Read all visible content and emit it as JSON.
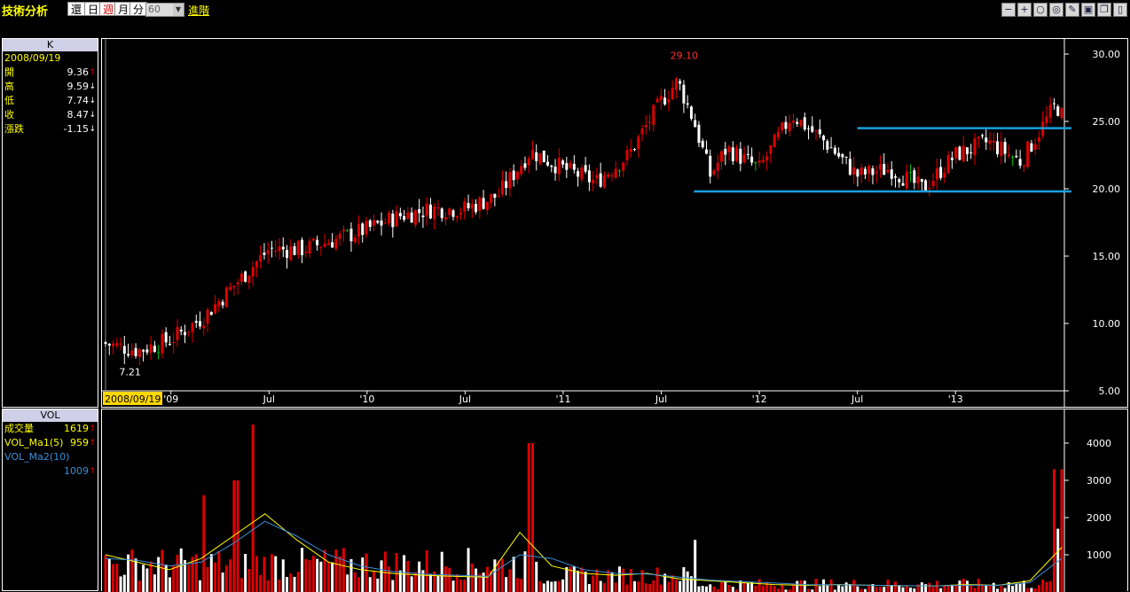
{
  "toolbar": {
    "title": "技術分析",
    "timeframes": [
      "還",
      "日",
      "週",
      "月",
      "分"
    ],
    "active_timeframe": "週",
    "period_value": "60",
    "advanced_label": "進階",
    "window_tools": [
      "minus-icon",
      "plus-icon",
      "zoom-out-icon",
      "zoom-in-icon",
      "draw-icon",
      "save-icon",
      "restore-icon",
      "close-icon"
    ]
  },
  "k_panel": {
    "title": "K",
    "date": "2008/09/19",
    "rows": [
      {
        "label": "開",
        "value": "9.36",
        "dir": "↑"
      },
      {
        "label": "高",
        "value": "9.59",
        "dir": "↓"
      },
      {
        "label": "低",
        "value": "7.74",
        "dir": "↓"
      },
      {
        "label": "收",
        "value": "8.47",
        "dir": "↓"
      },
      {
        "label": "漲跌",
        "value": "-1.15",
        "dir": "↓"
      }
    ]
  },
  "vol_panel": {
    "title": "VOL",
    "rows": [
      {
        "label": "成交量",
        "value": "1619",
        "dir": "↑"
      },
      {
        "label": "VOL_Ma1(5)",
        "value": "959",
        "dir": "↑"
      },
      {
        "label": "VOL_Ma2(10)",
        "value": "",
        "dir": ""
      },
      {
        "label": "",
        "value": "1009",
        "dir": "↑"
      }
    ]
  },
  "colors": {
    "up": "#e00000",
    "down": "#ffffff",
    "flat": "#00c000",
    "ma5": "#ffff00",
    "ma10": "#3b8fd8",
    "trend": "#1aa0e0",
    "cursor_label": "#ffd700"
  },
  "chart_data": [
    {
      "type": "candlestick",
      "ylim": [
        5,
        30
      ],
      "yticks": [
        "30.00",
        "25.00",
        "20.00",
        "15.00",
        "10.00",
        "5.00"
      ],
      "x_tick_labels": [
        "2008/09/19",
        "'09",
        "Jul",
        "'10",
        "Jul",
        "'11",
        "Jul",
        "'12",
        "Jul",
        "'13"
      ],
      "annotations": [
        {
          "label": "29.10",
          "value": 29.1
        },
        {
          "label": "7.21",
          "value": 7.21
        }
      ],
      "trendlines": [
        {
          "from": {
            "date": "2011-09",
            "value": 19.8
          },
          "to": {
            "date": "2013-07",
            "value": 19.8
          }
        },
        {
          "from": {
            "date": "2012-07",
            "value": 24.5
          },
          "to": {
            "date": "2013-07",
            "value": 24.5
          }
        }
      ],
      "close_path": [
        {
          "date": "2008-09",
          "value": 8.5
        },
        {
          "date": "2008-11",
          "value": 8.0
        },
        {
          "date": "2009-01",
          "value": 8.8
        },
        {
          "date": "2009-03",
          "value": 10.5
        },
        {
          "date": "2009-05",
          "value": 13.0
        },
        {
          "date": "2009-07",
          "value": 15.5
        },
        {
          "date": "2009-09",
          "value": 15.5
        },
        {
          "date": "2009-11",
          "value": 16.2
        },
        {
          "date": "2010-01",
          "value": 17.0
        },
        {
          "date": "2010-03",
          "value": 18.0
        },
        {
          "date": "2010-05",
          "value": 18.5
        },
        {
          "date": "2010-07",
          "value": 18.5
        },
        {
          "date": "2010-09",
          "value": 19.5
        },
        {
          "date": "2010-11",
          "value": 22.8
        },
        {
          "date": "2011-01",
          "value": 21.5
        },
        {
          "date": "2011-03",
          "value": 20.5
        },
        {
          "date": "2011-05",
          "value": 22.5
        },
        {
          "date": "2011-07",
          "value": 26.5
        },
        {
          "date": "2011-08",
          "value": 28.0
        },
        {
          "date": "2011-09",
          "value": 25.0
        },
        {
          "date": "2011-10",
          "value": 21.0
        },
        {
          "date": "2011-11",
          "value": 23.0
        },
        {
          "date": "2012-01",
          "value": 21.5
        },
        {
          "date": "2012-03",
          "value": 25.5
        },
        {
          "date": "2012-05",
          "value": 23.5
        },
        {
          "date": "2012-07",
          "value": 21.0
        },
        {
          "date": "2012-09",
          "value": 21.5
        },
        {
          "date": "2012-11",
          "value": 20.0
        },
        {
          "date": "2013-01",
          "value": 22.5
        },
        {
          "date": "2013-03",
          "value": 23.5
        },
        {
          "date": "2013-05",
          "value": 22.0
        },
        {
          "date": "2013-07",
          "value": 26.0
        }
      ]
    },
    {
      "type": "bar",
      "ylim": [
        0,
        4500
      ],
      "yticks": [
        "4000",
        "3000",
        "2000",
        "1000"
      ],
      "peaks": [
        {
          "date": "2009-06",
          "value": 4500
        },
        {
          "date": "2009-05",
          "value": 3000
        },
        {
          "date": "2009-03",
          "value": 2600
        },
        {
          "date": "2010-11",
          "value": 4000
        },
        {
          "date": "2011-09",
          "value": 1400
        },
        {
          "date": "2013-07",
          "value": 3300
        }
      ],
      "series": [
        {
          "name": "VOL_Ma1(5)",
          "values": [
            1000,
            800,
            600,
            900,
            1500,
            2100,
            1400,
            800,
            600,
            500,
            450,
            420,
            400,
            1600,
            700,
            500,
            450,
            500,
            350,
            300,
            250,
            200,
            180,
            200,
            180,
            170,
            160,
            200,
            180,
            300,
            1200
          ]
        },
        {
          "name": "VOL_Ma2(10)",
          "values": [
            900,
            850,
            700,
            800,
            1300,
            1900,
            1500,
            1000,
            700,
            550,
            480,
            450,
            420,
            1000,
            900,
            600,
            500,
            480,
            400,
            320,
            280,
            240,
            200,
            190,
            180,
            170,
            165,
            180,
            180,
            250,
            900
          ]
        }
      ]
    }
  ]
}
